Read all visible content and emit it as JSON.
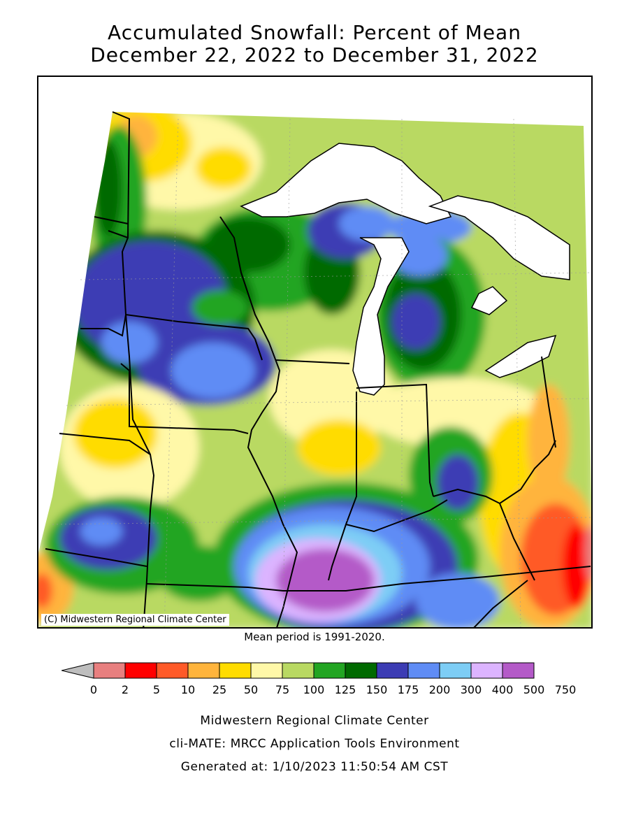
{
  "title_line1": "Accumulated Snowfall: Percent of Mean",
  "title_line2": "December 22, 2022 to December 31, 2022",
  "credit_label": "(C) Midwestern Regional Climate Center",
  "mean_period_note": "Mean period is 1991-2020.",
  "legend": {
    "bins": [
      {
        "label": "0",
        "color": "#bebebe"
      },
      {
        "label": "2",
        "color": "#e87f7f"
      },
      {
        "label": "5",
        "color": "#ff0000"
      },
      {
        "label": "10",
        "color": "#ff5a28"
      },
      {
        "label": "25",
        "color": "#ffb43c"
      },
      {
        "label": "50",
        "color": "#ffdc00"
      },
      {
        "label": "75",
        "color": "#fff8a8"
      },
      {
        "label": "100",
        "color": "#b9d962"
      },
      {
        "label": "125",
        "color": "#22a522"
      },
      {
        "label": "150",
        "color": "#006a00"
      },
      {
        "label": "175",
        "color": "#3c3cb4"
      },
      {
        "label": "200",
        "color": "#5f8cf5"
      },
      {
        "label": "300",
        "color": "#7dcdf5"
      },
      {
        "label": "400",
        "color": "#dcb4ff"
      },
      {
        "label": "500",
        "color": "#b45ac8"
      },
      {
        "label": "750",
        "color": ""
      }
    ]
  },
  "footer": {
    "line1": "Midwestern Regional Climate Center",
    "line2": "cli-MATE: MRCC Application Tools Environment",
    "line3": "Generated at: 1/10/2023 11:50:54 AM CST"
  }
}
